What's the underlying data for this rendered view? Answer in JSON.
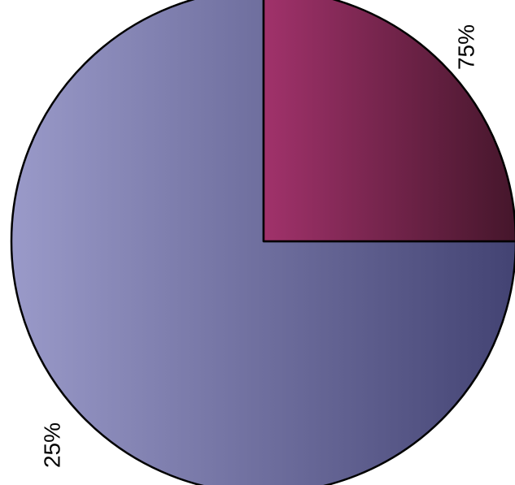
{
  "chart_data": {
    "type": "pie",
    "title": "",
    "slices": [
      {
        "value": 75,
        "label": "75%",
        "color_light": "#9a9ac9",
        "color_dark": "#434373"
      },
      {
        "value": 25,
        "label": "25%",
        "color_light": "#a1326b",
        "color_dark": "#45162b"
      }
    ],
    "start_angle_deg": 90,
    "direction": "counterclockwise",
    "legend": "none"
  }
}
